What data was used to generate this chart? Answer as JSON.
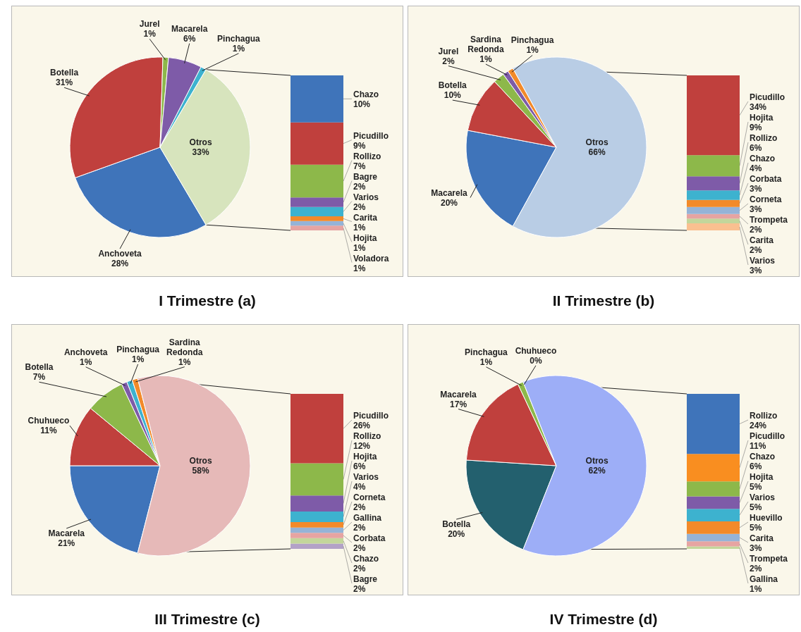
{
  "chart_data": [
    {
      "type": "pie",
      "title": "I Trimestre (a)",
      "categories": [
        "Anchoveta",
        "Botella",
        "Jurel",
        "Macarela",
        "Pinchagua",
        "Otros"
      ],
      "values": [
        28,
        31,
        1,
        6,
        1,
        33
      ],
      "value_labels": [
        "28%",
        "31%",
        "1%",
        "6%",
        "1%",
        "33%"
      ],
      "colors": [
        "#3F74BA",
        "#C0403D",
        "#8DB84A",
        "#7E5BA8",
        "#3DB2CF",
        "#D7E4BD"
      ]
    },
    {
      "type": "bar",
      "stacked": true,
      "categories": [
        null
      ],
      "series": [
        {
          "name": "Voladora",
          "color": "#E6A4A2",
          "values": [
            1
          ],
          "value_labels": [
            "1%"
          ]
        },
        {
          "name": "Hojita",
          "color": "#95B3D7",
          "values": [
            1
          ],
          "value_labels": [
            "1%"
          ]
        },
        {
          "name": "Carita",
          "color": "#F28A2A",
          "values": [
            1
          ],
          "value_labels": [
            "1%"
          ]
        },
        {
          "name": "Varios",
          "color": "#3DB2CF",
          "values": [
            2
          ],
          "value_labels": [
            "2%"
          ]
        },
        {
          "name": "Bagre",
          "color": "#7E5BA8",
          "values": [
            2
          ],
          "value_labels": [
            "2%"
          ]
        },
        {
          "name": "Rollizo",
          "color": "#8DB84A",
          "values": [
            7
          ],
          "value_labels": [
            "7%"
          ]
        },
        {
          "name": "Picudillo",
          "color": "#C0403D",
          "values": [
            9
          ],
          "value_labels": [
            "9%"
          ]
        },
        {
          "name": "Chazo",
          "color": "#3F74BA",
          "values": [
            10
          ],
          "value_labels": [
            "10%"
          ]
        }
      ]
    },
    {
      "type": "pie",
      "title": "II Trimestre (b)",
      "categories": [
        "Macarela",
        "Botella",
        "Jurel",
        "Sardina Redonda",
        "Pinchagua",
        "Otros"
      ],
      "values": [
        20,
        10,
        2,
        1,
        1,
        66
      ],
      "value_labels": [
        "20%",
        "10%",
        "2%",
        "1%",
        "1%",
        "66%"
      ],
      "colors": [
        "#3F74BA",
        "#C0403D",
        "#8DB84A",
        "#7E5BA8",
        "#F28A2A",
        "#B9CDE5"
      ]
    },
    {
      "type": "bar",
      "stacked": true,
      "categories": [
        null
      ],
      "series": [
        {
          "name": "Varios",
          "color": "#FAC090",
          "values": [
            3
          ],
          "value_labels": [
            "3%"
          ]
        },
        {
          "name": "Carita",
          "color": "#C3D69B",
          "values": [
            2
          ],
          "value_labels": [
            "2%"
          ]
        },
        {
          "name": "Trompeta",
          "color": "#E6A4A2",
          "values": [
            2
          ],
          "value_labels": [
            "2%"
          ]
        },
        {
          "name": "Corneta",
          "color": "#95B3D7",
          "values": [
            3
          ],
          "value_labels": [
            "3%"
          ]
        },
        {
          "name": "Corbata",
          "color": "#F28A2A",
          "values": [
            3
          ],
          "value_labels": [
            "3%"
          ]
        },
        {
          "name": "Chazo",
          "color": "#3DB2CF",
          "values": [
            4
          ],
          "value_labels": [
            "4%"
          ]
        },
        {
          "name": "Rollizo",
          "color": "#7E5BA8",
          "values": [
            6
          ],
          "value_labels": [
            "6%"
          ]
        },
        {
          "name": "Hojita",
          "color": "#8DB84A",
          "values": [
            9
          ],
          "value_labels": [
            "9%"
          ]
        },
        {
          "name": "Picudillo",
          "color": "#C0403D",
          "values": [
            34
          ],
          "value_labels": [
            "34%"
          ]
        }
      ]
    },
    {
      "type": "pie",
      "title": "III Trimestre (c)",
      "categories": [
        "Macarela",
        "Chuhueco",
        "Botella",
        "Anchoveta",
        "Pinchagua",
        "Sardina Redonda",
        "Otros"
      ],
      "values": [
        21,
        11,
        7,
        1,
        1,
        1,
        58
      ],
      "value_labels": [
        "21%",
        "11%",
        "7%",
        "1%",
        "1%",
        "1%",
        "58%"
      ],
      "colors": [
        "#3F74BA",
        "#C0403D",
        "#8DB84A",
        "#7E5BA8",
        "#3DB2CF",
        "#F28A2A",
        "#E6B9B8"
      ]
    },
    {
      "type": "bar",
      "stacked": true,
      "categories": [
        null
      ],
      "series": [
        {
          "name": "Bagre",
          "color": "#B3A2C7",
          "values": [
            2
          ],
          "value_labels": [
            "2%"
          ]
        },
        {
          "name": "Chazo",
          "color": "#C3D69B",
          "values": [
            2
          ],
          "value_labels": [
            "2%"
          ]
        },
        {
          "name": "Corbata",
          "color": "#E6A4A2",
          "values": [
            2
          ],
          "value_labels": [
            "2%"
          ]
        },
        {
          "name": "Gallina",
          "color": "#95B3D7",
          "values": [
            2
          ],
          "value_labels": [
            "2%"
          ]
        },
        {
          "name": "Corneta",
          "color": "#F28A2A",
          "values": [
            2
          ],
          "value_labels": [
            "2%"
          ]
        },
        {
          "name": "Varios",
          "color": "#3DB2CF",
          "values": [
            4
          ],
          "value_labels": [
            "4%"
          ]
        },
        {
          "name": "Hojita",
          "color": "#7E5BA8",
          "values": [
            6
          ],
          "value_labels": [
            "6%"
          ]
        },
        {
          "name": "Rollizo",
          "color": "#8DB84A",
          "values": [
            12
          ],
          "value_labels": [
            "12%"
          ]
        },
        {
          "name": "Picudillo",
          "color": "#C0403D",
          "values": [
            26
          ],
          "value_labels": [
            "26%"
          ]
        }
      ]
    },
    {
      "type": "pie",
      "title": "IV Trimestre (d)",
      "categories": [
        "Botella",
        "Macarela",
        "Pinchagua",
        "Chuhueco",
        "Otros"
      ],
      "values": [
        20,
        17,
        1,
        0,
        62
      ],
      "value_labels": [
        "20%",
        "17%",
        "1%",
        "0%",
        "62%"
      ],
      "colors": [
        "#23606E",
        "#C0403D",
        "#8DB84A",
        "#7E5BA8",
        "#9DAEF7"
      ]
    },
    {
      "type": "bar",
      "stacked": true,
      "categories": [
        null
      ],
      "series": [
        {
          "name": "Gallina",
          "color": "#C3D69B",
          "values": [
            1
          ],
          "value_labels": [
            "1%"
          ]
        },
        {
          "name": "Trompeta",
          "color": "#E6A4A2",
          "values": [
            2
          ],
          "value_labels": [
            "2%"
          ]
        },
        {
          "name": "Carita",
          "color": "#95B3D7",
          "values": [
            3
          ],
          "value_labels": [
            "3%"
          ]
        },
        {
          "name": "Huevillo",
          "color": "#F28A2A",
          "values": [
            5
          ],
          "value_labels": [
            "5%"
          ]
        },
        {
          "name": "Varios",
          "color": "#3DB2CF",
          "values": [
            5
          ],
          "value_labels": [
            "5%"
          ]
        },
        {
          "name": "Hojita",
          "color": "#7E5BA8",
          "values": [
            5
          ],
          "value_labels": [
            "5%"
          ]
        },
        {
          "name": "Chazo",
          "color": "#8DB84A",
          "values": [
            6
          ],
          "value_labels": [
            "6%"
          ]
        },
        {
          "name": "Picudillo",
          "color": "#F98E20",
          "values": [
            11
          ],
          "value_labels": [
            "11%"
          ]
        },
        {
          "name": "Rollizo",
          "color": "#3F74BA",
          "values": [
            24
          ],
          "value_labels": [
            "24%"
          ]
        }
      ]
    }
  ]
}
